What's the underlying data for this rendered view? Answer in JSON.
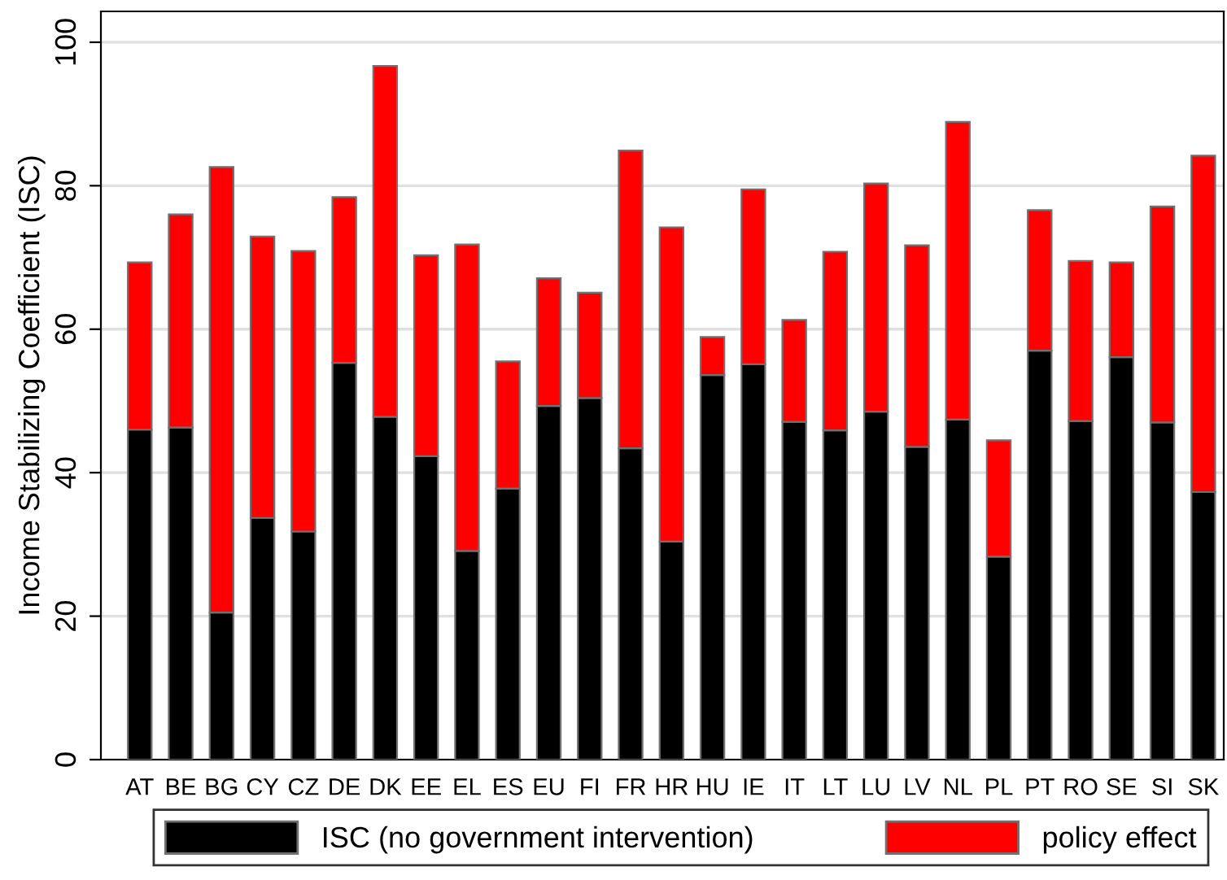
{
  "chart_data": {
    "type": "bar",
    "stacked": true,
    "ylabel": "Income Stabilizing Coefficient (ISC)",
    "categories": [
      "AT",
      "BE",
      "BG",
      "CY",
      "CZ",
      "DE",
      "DK",
      "EE",
      "EL",
      "ES",
      "EU",
      "FI",
      "FR",
      "HR",
      "HU",
      "IE",
      "IT",
      "LT",
      "LU",
      "LV",
      "NL",
      "PL",
      "PT",
      "RO",
      "SE",
      "SI",
      "SK"
    ],
    "series": [
      {
        "name": "ISC (no government intervention)",
        "color": "#000000",
        "values": [
          46,
          46.3,
          20.5,
          33.7,
          31.8,
          55.3,
          47.8,
          42.3,
          29.1,
          37.8,
          49.3,
          50.4,
          43.4,
          30.4,
          53.6,
          55.1,
          47.1,
          45.9,
          48.5,
          43.6,
          47.4,
          28.3,
          57,
          47.2,
          56.1,
          47,
          37.3
        ]
      },
      {
        "name": "policy effect",
        "color": "#ff0000",
        "values": [
          23.3,
          29.7,
          62.1,
          39.2,
          39.1,
          23.1,
          48.9,
          28,
          42.7,
          17.7,
          17.8,
          14.7,
          41.5,
          43.8,
          5.3,
          24.4,
          14.2,
          24.9,
          31.8,
          28.1,
          41.5,
          16.2,
          19.6,
          22.3,
          13.2,
          30.1,
          46.9
        ]
      }
    ],
    "ylim": [
      0,
      104.3
    ],
    "yticks": [
      0,
      20,
      40,
      60,
      80,
      100
    ],
    "grid": "y",
    "legend": "bottom"
  }
}
